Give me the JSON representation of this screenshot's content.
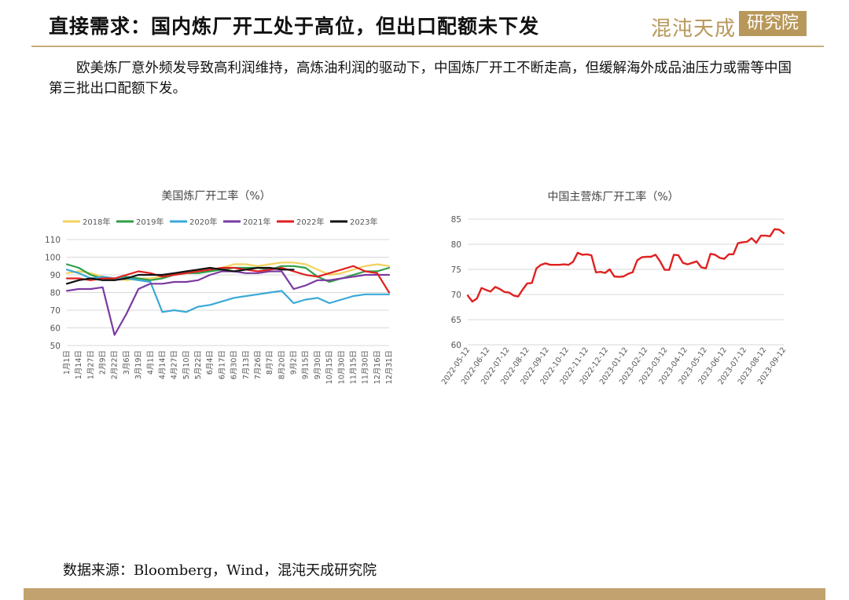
{
  "header": {
    "title": "直接需求：国内炼厂开工处于高位，但出口配额未下发",
    "logo_left": "混沌天成",
    "logo_right": "研究院"
  },
  "intro": "欧美炼厂意外频发导致高利润维持，高炼油利润的驱动下，中国炼厂开工不断走高，但缓解海外成品油压力或需等中国第三批出口配额下发。",
  "source": "数据来源：Bloomberg，Wind，混沌天成研究院",
  "colors": {
    "accent": "#c2a26e",
    "title_rule": "#c7ad78"
  },
  "chart_data": [
    {
      "type": "line",
      "title": "美国炼厂开工率（%）",
      "ylim": [
        50,
        110
      ],
      "yticks": [
        50,
        60,
        70,
        80,
        90,
        100,
        110
      ],
      "x_labels": [
        "1月1日",
        "1月14日",
        "1月27日",
        "2月9日",
        "2月22日",
        "3月6日",
        "3月19日",
        "4月1日",
        "4月14日",
        "4月27日",
        "5月10日",
        "5月22日",
        "6月4日",
        "6月17日",
        "6月30日",
        "7月13日",
        "7月26日",
        "8月7日",
        "8月20日",
        "9月2日",
        "9月15日",
        "9月30日",
        "10月15日",
        "10月30日",
        "11月15日",
        "11月30日",
        "12月16日",
        "12月31日"
      ],
      "grid": true,
      "legend_position": "top",
      "series": [
        {
          "name": "2018年",
          "color": "#f2d15c",
          "values": [
            91,
            92,
            91,
            89,
            88,
            87,
            88,
            88,
            89,
            90,
            91,
            92,
            93,
            94,
            96,
            96,
            95,
            96,
            97,
            97,
            96,
            93,
            90,
            91,
            93,
            95,
            96,
            95
          ]
        },
        {
          "name": "2019年",
          "color": "#2e9e4a",
          "values": [
            96,
            94,
            90,
            88,
            87,
            89,
            88,
            87,
            88,
            90,
            91,
            91,
            92,
            93,
            94,
            94,
            94,
            93,
            95,
            95,
            94,
            89,
            86,
            88,
            90,
            92,
            92,
            94
          ]
        },
        {
          "name": "2020年",
          "color": "#3aa9d8",
          "values": [
            93,
            91,
            88,
            89,
            88,
            88,
            87,
            86,
            69,
            70,
            69,
            72,
            73,
            75,
            77,
            78,
            79,
            80,
            81,
            74,
            76,
            77,
            74,
            76,
            78,
            79,
            79,
            79
          ]
        },
        {
          "name": "2021年",
          "color": "#7a3aa0",
          "values": [
            81,
            82,
            82,
            83,
            56,
            68,
            82,
            85,
            85,
            86,
            86,
            87,
            90,
            92,
            92,
            91,
            91,
            92,
            92,
            82,
            84,
            87,
            87,
            88,
            89,
            90,
            90,
            90
          ]
        },
        {
          "name": "2022年",
          "color": "#e02020",
          "values": [
            88,
            88,
            87,
            88,
            88,
            90,
            92,
            91,
            89,
            90,
            91,
            92,
            93,
            94,
            94,
            93,
            92,
            93,
            94,
            92,
            90,
            89,
            91,
            93,
            95,
            92,
            91,
            80
          ]
        },
        {
          "name": "2023年",
          "color": "#111111",
          "values": [
            85,
            87,
            88,
            87,
            87,
            88,
            90,
            90,
            90,
            91,
            92,
            93,
            94,
            93,
            92,
            93,
            94,
            94,
            93,
            93,
            null,
            null,
            null,
            null,
            null,
            null,
            null,
            null
          ]
        }
      ]
    },
    {
      "type": "line",
      "title": "中国主营炼厂开工率（%）",
      "ylim": [
        60,
        85
      ],
      "yticks": [
        60,
        65,
        70,
        75,
        80,
        85
      ],
      "x_labels": [
        "2022-05-12",
        "2022-06-12",
        "2022-07-12",
        "2022-08-12",
        "2022-09-12",
        "2022-10-12",
        "2022-11-12",
        "2022-12-12",
        "2023-01-12",
        "2023-02-12",
        "2023-03-12",
        "2023-04-12",
        "2023-05-12",
        "2023-06-12",
        "2023-07-12",
        "2023-08-12",
        "2023-09-12"
      ],
      "grid": true,
      "series": [
        {
          "color": "#e02020",
          "values": [
            69.8,
            68.6,
            69.2,
            71.3,
            70.9,
            70.6,
            71.5,
            71.1,
            70.5,
            70.4,
            69.8,
            69.6,
            71,
            72.2,
            72.3,
            75.2,
            75.9,
            76.2,
            75.9,
            75.9,
            75.9,
            76,
            75.9,
            76.5,
            78.3,
            77.9,
            78,
            77.8,
            74.4,
            74.5,
            74.3,
            75,
            73.6,
            73.5,
            73.6,
            74.1,
            74.4,
            76.8,
            77.4,
            77.5,
            77.5,
            77.9,
            76.6,
            74.9,
            74.9,
            77.9,
            77.8,
            76.3,
            76,
            76.3,
            76.6,
            75.4,
            75.2,
            78.1,
            77.9,
            77.3,
            77.1,
            78,
            78,
            80.2,
            80.4,
            80.5,
            81.2,
            80.3,
            81.7,
            81.7,
            81.6,
            83,
            82.9,
            82.2
          ]
        }
      ]
    }
  ]
}
